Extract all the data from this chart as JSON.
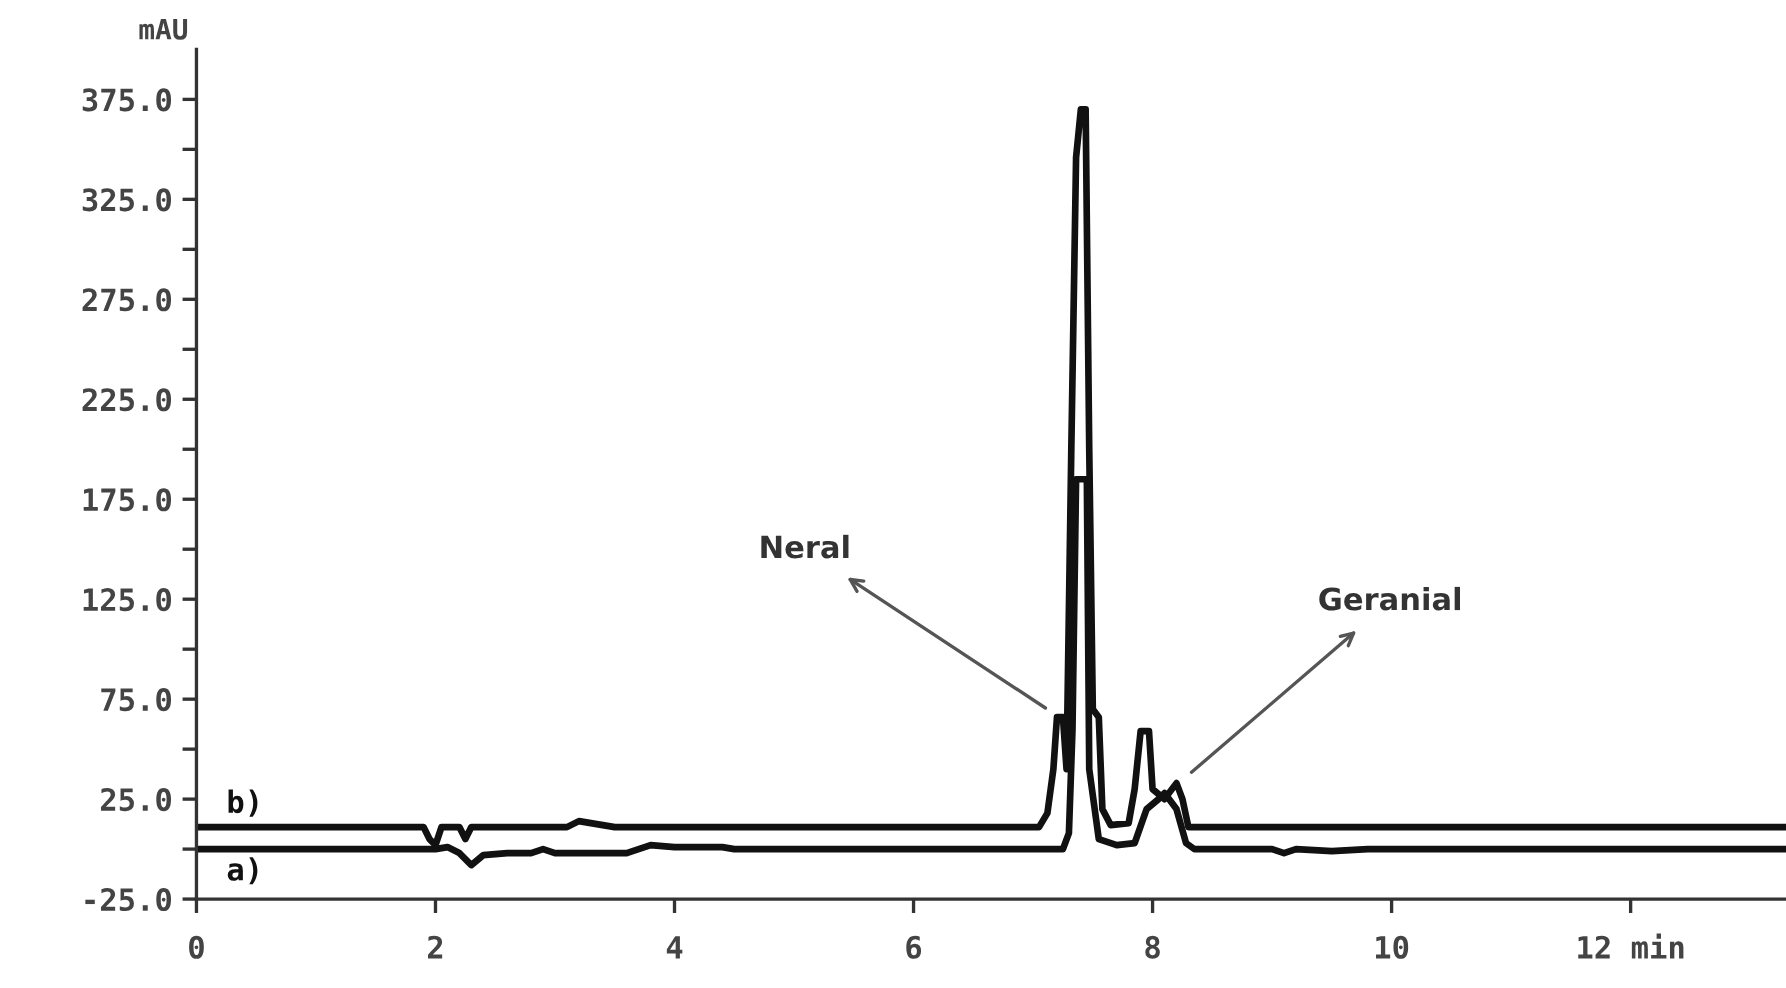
{
  "chart_data": {
    "type": "line",
    "ylabel": "mAU",
    "xlim": [
      0,
      13.3
    ],
    "ylim": [
      -25,
      400
    ],
    "xticks": [
      0,
      2,
      4,
      6,
      8,
      10,
      {
        "value": 12,
        "label": "12 min"
      }
    ],
    "yticks": [
      {
        "value": -25,
        "label": "-25.0"
      },
      {
        "value": 0,
        "label": null
      },
      {
        "value": 25,
        "label": "25.0"
      },
      {
        "value": 50,
        "label": null
      },
      {
        "value": 75,
        "label": "75.0"
      },
      {
        "value": 100,
        "label": null
      },
      {
        "value": 125,
        "label": "125.0"
      },
      {
        "value": 150,
        "label": null
      },
      {
        "value": 175,
        "label": "175.0"
      },
      {
        "value": 200,
        "label": null
      },
      {
        "value": 225,
        "label": "225.0"
      },
      {
        "value": 250,
        "label": null
      },
      {
        "value": 275,
        "label": "275.0"
      },
      {
        "value": 300,
        "label": null
      },
      {
        "value": 325,
        "label": "325.0"
      },
      {
        "value": 350,
        "label": null
      },
      {
        "value": 375,
        "label": "375.0"
      }
    ],
    "grid": false,
    "legend": false,
    "marker": "none",
    "line_style": "solid",
    "series": [
      {
        "name": "a)",
        "color": "#111111",
        "x": [
          0,
          2.0,
          2.1,
          2.2,
          2.3,
          2.4,
          2.6,
          2.8,
          2.9,
          3.0,
          3.6,
          3.8,
          4.0,
          4.4,
          4.5,
          7.25,
          7.3,
          7.33,
          7.36,
          7.45,
          7.47,
          7.55,
          7.7,
          7.85,
          7.95,
          8.05,
          8.1,
          8.2,
          8.28,
          8.35,
          9.0,
          9.1,
          9.2,
          9.5,
          9.8,
          13.3
        ],
        "values": [
          0,
          0,
          1,
          -2,
          -8,
          -3,
          -2,
          -2,
          0,
          -2,
          -2,
          2,
          1,
          1,
          0,
          0,
          8,
          60,
          185,
          185,
          40,
          5,
          2,
          3,
          20,
          25,
          28,
          20,
          3,
          0,
          0,
          -2,
          0,
          -1,
          0,
          0
        ]
      },
      {
        "name": "b)",
        "color": "#111111",
        "x": [
          0,
          1.9,
          1.95,
          2.0,
          2.05,
          2.2,
          2.25,
          2.3,
          3.1,
          3.2,
          3.4,
          3.5,
          7.05,
          7.12,
          7.17,
          7.2,
          7.25,
          7.28,
          7.32,
          7.36,
          7.4,
          7.44,
          7.47,
          7.5,
          7.55,
          7.58,
          7.65,
          7.8,
          7.85,
          7.9,
          7.97,
          8.0,
          8.1,
          8.2,
          8.25,
          8.3,
          13.3
        ],
        "values": [
          11,
          11,
          5,
          2,
          11,
          11,
          5,
          11,
          11,
          14,
          12,
          11,
          11,
          18,
          40,
          66,
          66,
          40,
          200,
          346,
          370,
          370,
          200,
          70,
          66,
          20,
          12,
          13,
          30,
          59,
          59,
          30,
          25,
          33,
          25,
          11,
          11
        ]
      }
    ],
    "annotations": [
      {
        "text": "Neral",
        "x": 7.22,
        "y": 66
      },
      {
        "text": "Geranial",
        "x": 8.22,
        "y": 33
      }
    ]
  }
}
